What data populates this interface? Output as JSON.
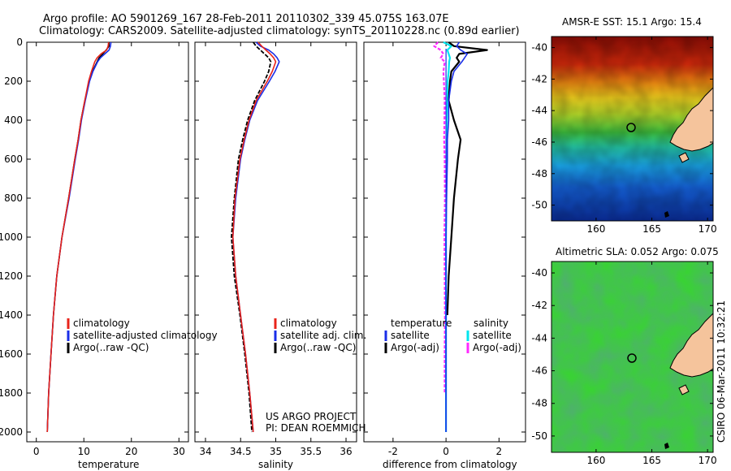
{
  "header": {
    "line1": "Argo profile: AO 5901269_167 28-Feb-2011 20110302_339 45.075S 163.07E",
    "line2": "Climatology: CARS2009. Satellite-adjusted climatology: synTS_20110228.nc (0.89d earlier)"
  },
  "colors": {
    "climatology": "#e8231a",
    "satellite": "#1a2ee8",
    "argo": "#000000",
    "sal_satellite": "#00e5ee",
    "sal_argo": "#ff2bff"
  },
  "stamp": "CSIRO 06-Mar-2011 10:32:21",
  "credit": {
    "line1": "US ARGO PROJECT",
    "line2": "PI: DEAN ROEMMICH"
  },
  "chart_data": [
    {
      "type": "line",
      "xlabel": "temperature",
      "xlim": [
        -2,
        32
      ],
      "xticks": [
        "0",
        "10",
        "20",
        "30"
      ],
      "ylim": [
        2050,
        0
      ],
      "yticks": [
        "0",
        "200",
        "400",
        "600",
        "800",
        "1000",
        "1200",
        "1400",
        "1600",
        "1800",
        "2000"
      ],
      "depth": [
        0,
        20,
        40,
        60,
        80,
        100,
        150,
        200,
        300,
        400,
        500,
        600,
        800,
        1000,
        1200,
        1400,
        1600,
        1800,
        2000
      ],
      "series": [
        {
          "name": "climatology",
          "values": [
            15.2,
            15.1,
            14.8,
            13.6,
            12.8,
            12.3,
            11.6,
            11.0,
            10.2,
            9.4,
            8.8,
            8.1,
            6.8,
            5.4,
            4.3,
            3.6,
            3.1,
            2.6,
            2.3
          ]
        },
        {
          "name": "satellite-adjusted climatology",
          "values": [
            15.7,
            15.6,
            15.3,
            14.4,
            13.5,
            12.9,
            11.9,
            11.2,
            10.3,
            9.5,
            8.9,
            8.2,
            6.9,
            5.4,
            4.3,
            3.6,
            3.1,
            2.6,
            2.3
          ]
        },
        {
          "name": "Argo(..raw -QC)",
          "values": [
            15.3,
            15.3,
            14.7,
            14.0,
            13.2,
            12.8,
            11.8,
            11.1,
            10.2,
            9.4,
            8.8,
            8.1,
            6.8,
            5.4,
            4.3,
            3.6,
            3.1,
            2.6,
            2.3
          ]
        }
      ],
      "legend": [
        "climatology",
        "satellite-adjusted climatology",
        "Argo(..raw -QC)"
      ]
    },
    {
      "type": "line",
      "xlabel": "salinity",
      "xlim": [
        33.85,
        36.15
      ],
      "xticks": [
        "34",
        "34.5",
        "35",
        "35.5",
        "36"
      ],
      "ylim": [
        2050,
        0
      ],
      "yticks": [],
      "depth": [
        0,
        20,
        40,
        60,
        80,
        100,
        150,
        200,
        300,
        400,
        500,
        600,
        800,
        1000,
        1200,
        1400,
        1600,
        1800,
        2000
      ],
      "series": [
        {
          "name": "climatology",
          "values": [
            34.75,
            34.8,
            34.86,
            34.92,
            34.97,
            35.0,
            34.95,
            34.88,
            34.72,
            34.62,
            34.55,
            34.49,
            34.42,
            34.39,
            34.43,
            34.5,
            34.57,
            34.63,
            34.68
          ]
        },
        {
          "name": "satellite adj. clim.",
          "values": [
            34.72,
            34.78,
            34.9,
            34.97,
            35.02,
            35.05,
            34.99,
            34.91,
            34.74,
            34.63,
            34.56,
            34.5,
            34.43,
            34.39,
            34.43,
            34.5,
            34.57,
            34.63,
            34.68
          ]
        },
        {
          "name": "Argo(..raw -QC)",
          "values": [
            34.68,
            34.72,
            34.78,
            34.84,
            34.9,
            34.93,
            34.9,
            34.84,
            34.7,
            34.6,
            34.53,
            34.47,
            34.41,
            34.37,
            34.41,
            34.49,
            34.56,
            34.62,
            34.66
          ]
        }
      ],
      "legend": [
        "climatology",
        "satellite adj. clim.",
        "Argo(..raw -QC)"
      ]
    },
    {
      "type": "line",
      "xlabel": "difference from climatology",
      "xlim": [
        -3.1,
        3.0
      ],
      "xticks": [
        "-2",
        "0",
        "2"
      ],
      "ylim": [
        2050,
        0
      ],
      "yticks": [],
      "depth": [
        0,
        20,
        40,
        60,
        80,
        100,
        150,
        200,
        300,
        400,
        500,
        600,
        800,
        1000,
        1200,
        1400,
        1600,
        1800,
        2000
      ],
      "series": [
        {
          "name": "temperature satellite",
          "values": [
            0.5,
            0.4,
            0.55,
            0.8,
            0.7,
            0.6,
            0.3,
            0.2,
            0.1,
            0.1,
            0.05,
            0.05,
            0.02,
            0.0,
            0.0,
            0.0,
            0.0,
            0.0,
            0.0
          ]
        },
        {
          "name": "temperature Argo(-adj)",
          "values": [
            0.1,
            0.3,
            1.55,
            0.5,
            0.4,
            0.5,
            0.2,
            0.15,
            0.1,
            0.3,
            0.55,
            0.45,
            0.3,
            0.2,
            0.1,
            0.05,
            null,
            null,
            null
          ]
        },
        {
          "name": "salinity satellite",
          "values": [
            -0.1,
            0.2,
            0.05,
            0.1,
            0.15,
            0.12,
            0.1,
            0.06,
            0.05,
            0.03,
            0.02,
            0.02,
            0.01,
            0.0,
            0.0,
            0.0,
            0.0,
            0.0,
            0.0
          ]
        },
        {
          "name": "salinity Argo(-adj)",
          "values": [
            -0.3,
            -0.45,
            -0.2,
            -0.1,
            -0.2,
            -0.05,
            -0.1,
            -0.08,
            -0.05,
            -0.06,
            -0.07,
            -0.05,
            -0.04,
            -0.06,
            -0.05,
            -0.04,
            -0.05,
            -0.05,
            null
          ]
        }
      ],
      "legend_titles": [
        "temperature",
        "salinity"
      ],
      "legend": [
        "satellite",
        "Argo(-adj)",
        "satellite",
        "Argo(-adj)"
      ]
    },
    {
      "type": "heatmap",
      "title": "AMSR-E SST: 15.1  Argo: 15.4",
      "xticks": [
        "160",
        "165",
        "170"
      ],
      "yticks": [
        "-40",
        "-42",
        "-44",
        "-46",
        "-48",
        "-50"
      ],
      "xlim": [
        156,
        170.5
      ],
      "ylim": [
        -51,
        -39.3
      ],
      "marker": [
        163.07,
        -45.075
      ]
    },
    {
      "type": "heatmap",
      "title": "Altimetric SLA: 0.052  Argo: 0.075",
      "xticks": [
        "160",
        "165",
        "170"
      ],
      "yticks": [
        "-40",
        "-42",
        "-44",
        "-46",
        "-48",
        "-50"
      ],
      "xlim": [
        156,
        170.5
      ],
      "ylim": [
        -51,
        -39.3
      ],
      "marker": [
        163.07,
        -45.075
      ]
    }
  ]
}
